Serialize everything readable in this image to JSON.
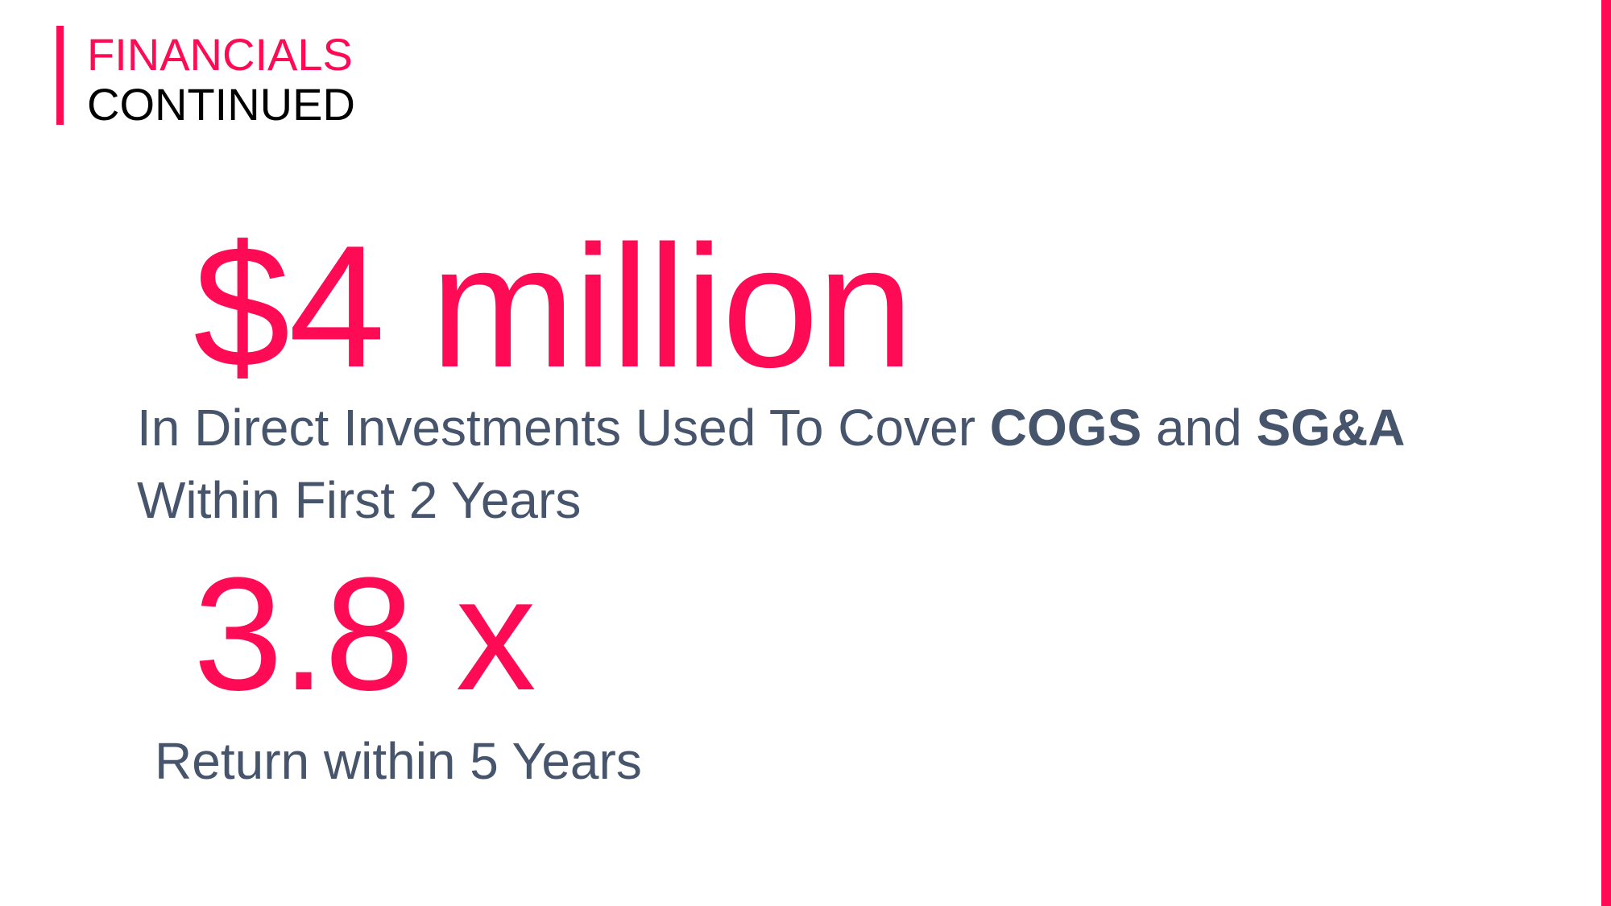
{
  "colors": {
    "accent": "#ff0a54",
    "heading_dark": "#000000",
    "body_text": "#46546c",
    "background": "#ffffff"
  },
  "header": {
    "line1": "FINANCIALS",
    "line2": "CONTINUED"
  },
  "stat1": {
    "value": "$4 million",
    "desc_part1": "In Direct Investments Used To Cover ",
    "desc_bold1": "COGS",
    "desc_part2": " and ",
    "desc_bold2": "SG&A",
    "desc_line2": "Within First 2 Years"
  },
  "stat2": {
    "value": "3.8 x",
    "desc": "Return within 5 Years"
  }
}
